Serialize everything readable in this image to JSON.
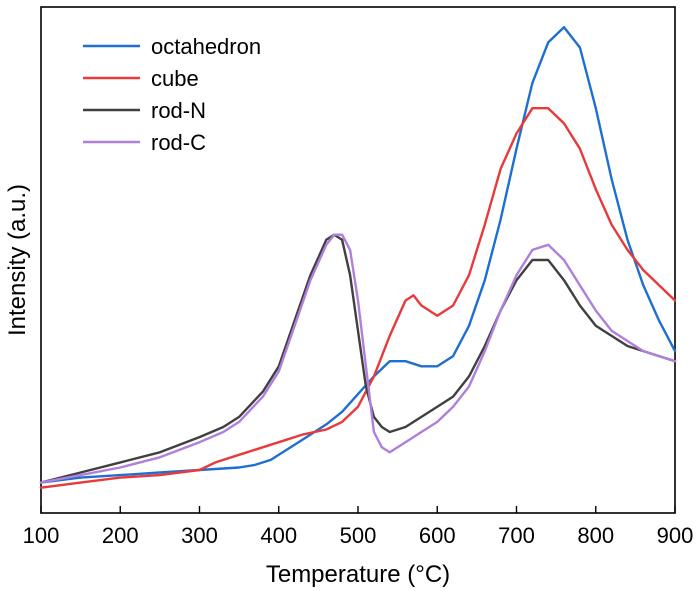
{
  "chart_data": {
    "type": "line",
    "title": "",
    "xlabel": "Temperature (°C)",
    "ylabel": "Intensity (a.u.)",
    "xlim": [
      100,
      900
    ],
    "ylim": [
      0,
      1
    ],
    "x_ticks": [
      100,
      200,
      300,
      400,
      500,
      600,
      700,
      800,
      900
    ],
    "x_tick_labels": [
      "100",
      "200",
      "300",
      "400",
      "500",
      "600",
      "700",
      "800",
      "900"
    ],
    "y_ticks_visible": false,
    "grid": false,
    "legend_position": "top-left",
    "series": [
      {
        "name": "octahedron",
        "color": "#1f6fd0",
        "x": [
          100,
          150,
          200,
          250,
          300,
          350,
          370,
          390,
          400,
          420,
          440,
          460,
          480,
          500,
          520,
          540,
          560,
          580,
          600,
          620,
          640,
          660,
          680,
          700,
          720,
          740,
          760,
          780,
          800,
          820,
          840,
          860,
          880,
          900
        ],
        "y": [
          0.06,
          0.07,
          0.075,
          0.08,
          0.085,
          0.09,
          0.095,
          0.105,
          0.115,
          0.135,
          0.155,
          0.175,
          0.2,
          0.235,
          0.27,
          0.3,
          0.3,
          0.29,
          0.29,
          0.31,
          0.37,
          0.46,
          0.58,
          0.72,
          0.85,
          0.93,
          0.96,
          0.92,
          0.8,
          0.66,
          0.54,
          0.45,
          0.38,
          0.32
        ]
      },
      {
        "name": "cube",
        "color": "#e83a3a",
        "x": [
          100,
          150,
          200,
          250,
          300,
          320,
          350,
          400,
          430,
          460,
          480,
          500,
          520,
          540,
          560,
          570,
          580,
          600,
          620,
          640,
          660,
          680,
          700,
          720,
          740,
          760,
          780,
          800,
          820,
          840,
          860,
          880,
          900
        ],
        "y": [
          0.05,
          0.06,
          0.07,
          0.075,
          0.085,
          0.1,
          0.115,
          0.14,
          0.155,
          0.165,
          0.18,
          0.21,
          0.27,
          0.35,
          0.42,
          0.43,
          0.41,
          0.39,
          0.41,
          0.47,
          0.57,
          0.68,
          0.75,
          0.8,
          0.8,
          0.77,
          0.72,
          0.64,
          0.57,
          0.52,
          0.48,
          0.45,
          0.42
        ]
      },
      {
        "name": "rod-N",
        "color": "#404040",
        "x": [
          100,
          150,
          200,
          250,
          300,
          330,
          350,
          380,
          400,
          420,
          440,
          460,
          470,
          480,
          490,
          500,
          510,
          520,
          530,
          540,
          560,
          580,
          600,
          620,
          640,
          660,
          680,
          700,
          720,
          740,
          760,
          780,
          800,
          820,
          840,
          860,
          880,
          900
        ],
        "y": [
          0.06,
          0.08,
          0.1,
          0.12,
          0.15,
          0.17,
          0.19,
          0.24,
          0.29,
          0.38,
          0.47,
          0.54,
          0.55,
          0.54,
          0.47,
          0.36,
          0.25,
          0.19,
          0.17,
          0.16,
          0.17,
          0.19,
          0.21,
          0.23,
          0.27,
          0.33,
          0.4,
          0.46,
          0.5,
          0.5,
          0.46,
          0.41,
          0.37,
          0.35,
          0.33,
          0.32,
          0.31,
          0.3
        ]
      },
      {
        "name": "rod-C",
        "color": "#b07fdc",
        "x": [
          100,
          150,
          200,
          250,
          300,
          330,
          350,
          380,
          400,
          420,
          440,
          460,
          470,
          480,
          490,
          500,
          510,
          520,
          530,
          540,
          560,
          580,
          600,
          620,
          640,
          660,
          680,
          700,
          720,
          740,
          760,
          780,
          800,
          820,
          840,
          860,
          880,
          900
        ],
        "y": [
          0.06,
          0.075,
          0.09,
          0.11,
          0.14,
          0.16,
          0.18,
          0.23,
          0.28,
          0.37,
          0.46,
          0.53,
          0.55,
          0.55,
          0.52,
          0.42,
          0.29,
          0.16,
          0.13,
          0.12,
          0.14,
          0.16,
          0.18,
          0.21,
          0.25,
          0.32,
          0.4,
          0.47,
          0.52,
          0.53,
          0.5,
          0.45,
          0.4,
          0.36,
          0.34,
          0.32,
          0.31,
          0.3
        ]
      }
    ]
  }
}
